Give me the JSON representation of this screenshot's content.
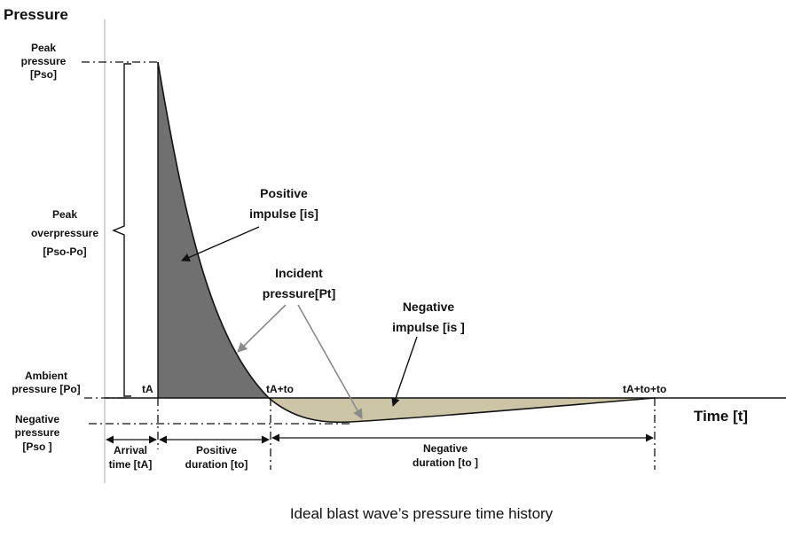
{
  "diagram": {
    "caption": "Ideal blast wave’s pressure time history",
    "axes": {
      "y_label": "Pressure",
      "x_label": "Time [t]"
    },
    "labels": {
      "peak_pressure": [
        "Peak",
        "pressure",
        "[Pso]"
      ],
      "peak_overpressure": [
        "Peak",
        "overpressure",
        "[Pso-Po]"
      ],
      "ambient_pressure": [
        "Ambient",
        "pressure [Po]"
      ],
      "negative_pressure": [
        "Negative",
        "pressure",
        "[Pso ]"
      ],
      "arrival_time": [
        "Arrival",
        "time [tA]"
      ],
      "positive_duration": [
        "Positive",
        "duration [to]"
      ],
      "negative_duration": [
        "Negative",
        "duration [to ]"
      ],
      "positive_impulse": [
        "Positive",
        "impulse [is]"
      ],
      "negative_impulse": [
        "Negative",
        "impulse [is ]"
      ],
      "incident_pressure": [
        "Incident",
        "pressure[Pt]"
      ],
      "t_a": "tA",
      "t_a_plus_to": "tA+to",
      "t_a_plus_to_plus_to": "tA+to+to"
    },
    "colors": {
      "positive_phase_fill": "#707070",
      "negative_phase_fill": "#cbc4a6",
      "line": "#111111",
      "pointer_gray": "#8a8a8a"
    }
  }
}
